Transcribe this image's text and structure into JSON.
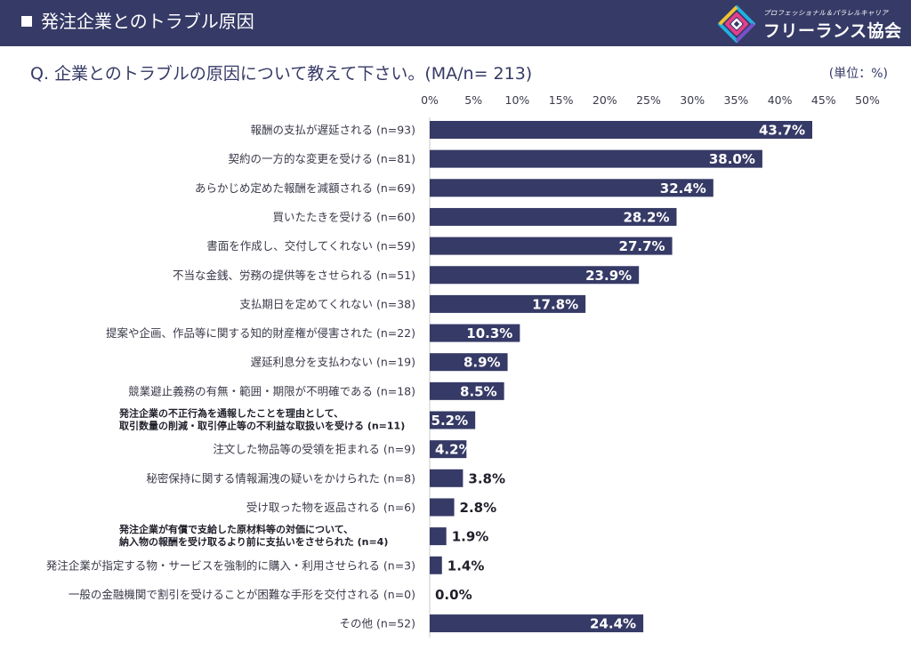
{
  "header": {
    "title": "発注企業とのトラブル原因",
    "logo_subtitle": "プロフェッショナル＆パラレルキャリア",
    "logo_name": "フリーランス協会"
  },
  "question": "Q.  企業とのトラブルの原因について教えて下さい。(MA/n= 213)",
  "unit": "(単位：%)",
  "colors": {
    "header_bg": "#363a66",
    "bar": "#363a66"
  },
  "chart_data": {
    "type": "bar",
    "orientation": "horizontal",
    "xlim": [
      0,
      50
    ],
    "ticks": [
      "0%",
      "5%",
      "10%",
      "15%",
      "20%",
      "25%",
      "30%",
      "35%",
      "40%",
      "45%",
      "50%"
    ],
    "tick_values": [
      0,
      5,
      10,
      15,
      20,
      25,
      30,
      35,
      40,
      45,
      50
    ],
    "grid": false,
    "categories": [
      {
        "lines": [
          "報酬の支払が遅延される (n=93)"
        ],
        "value": 43.7,
        "label": "43.7%"
      },
      {
        "lines": [
          "契約の一方的な変更を受ける (n=81)"
        ],
        "value": 38.0,
        "label": "38.0%"
      },
      {
        "lines": [
          "あらかじめ定めた報酬を減額される (n=69)"
        ],
        "value": 32.4,
        "label": "32.4%"
      },
      {
        "lines": [
          "買いたたきを受ける (n=60)"
        ],
        "value": 28.2,
        "label": "28.2%"
      },
      {
        "lines": [
          "書面を作成し、交付してくれない (n=59)"
        ],
        "value": 27.7,
        "label": "27.7%"
      },
      {
        "lines": [
          "不当な金銭、労務の提供等をさせられる (n=51)"
        ],
        "value": 23.9,
        "label": "23.9%"
      },
      {
        "lines": [
          "支払期日を定めてくれない (n=38)"
        ],
        "value": 17.8,
        "label": "17.8%"
      },
      {
        "lines": [
          "提案や企画、作品等に関する知的財産権が侵害された (n=22)"
        ],
        "value": 10.3,
        "label": "10.3%"
      },
      {
        "lines": [
          "遅延利息分を支払わない (n=19)"
        ],
        "value": 8.9,
        "label": "8.9%"
      },
      {
        "lines": [
          "競業避止義務の有無・範囲・期限が不明確である (n=18)"
        ],
        "value": 8.5,
        "label": "8.5%"
      },
      {
        "lines": [
          "発注企業の不正行為を通報したことを理由として、",
          "取引数量の削減・取引停止等の不利益な取扱いを受ける (n=11)"
        ],
        "value": 5.2,
        "label": "5.2%",
        "small": true
      },
      {
        "lines": [
          "注文した物品等の受領を拒まれる (n=9)"
        ],
        "value": 4.2,
        "label": "4.2%"
      },
      {
        "lines": [
          "秘密保持に関する情報漏洩の疑いをかけられた (n=8)"
        ],
        "value": 3.8,
        "label": "3.8%"
      },
      {
        "lines": [
          "受け取った物を返品される (n=6)"
        ],
        "value": 2.8,
        "label": "2.8%"
      },
      {
        "lines": [
          "発注企業が有償で支給した原材料等の対価について、",
          "納入物の報酬を受け取るより前に支払いをさせられた (n=4)"
        ],
        "value": 1.9,
        "label": "1.9%",
        "small": true
      },
      {
        "lines": [
          "発注企業が指定する物・サービスを強制的に購入・利用させられる (n=3)"
        ],
        "value": 1.4,
        "label": "1.4%"
      },
      {
        "lines": [
          "一般の金融機関で割引を受けることが困難な手形を交付される (n=0)"
        ],
        "value": 0.0,
        "label": "0.0%"
      },
      {
        "lines": [
          "その他 (n=52)"
        ],
        "value": 24.4,
        "label": "24.4%"
      }
    ]
  }
}
